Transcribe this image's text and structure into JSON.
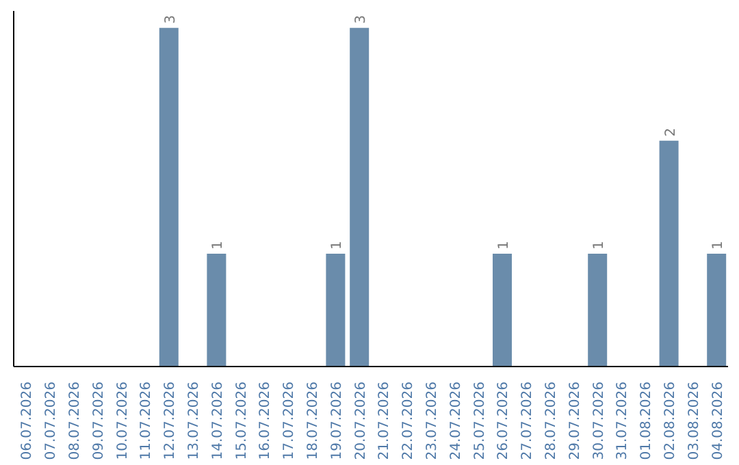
{
  "chart_data": {
    "type": "bar",
    "categories": [
      "06.07.2026",
      "07.07.2026",
      "08.07.2026",
      "09.07.2026",
      "10.07.2026",
      "11.07.2026",
      "12.07.2026",
      "13.07.2026",
      "14.07.2026",
      "15.07.2026",
      "16.07.2026",
      "17.07.2026",
      "18.07.2026",
      "19.07.2026",
      "20.07.2026",
      "21.07.2026",
      "22.07.2026",
      "23.07.2026",
      "24.07.2026",
      "25.07.2026",
      "26.07.2026",
      "27.07.2026",
      "28.07.2026",
      "29.07.2026",
      "30.07.2026",
      "31.07.2026",
      "01.08.2026",
      "02.08.2026",
      "03.08.2026",
      "04.08.2026"
    ],
    "values": [
      0,
      0,
      0,
      0,
      0,
      0,
      3,
      0,
      1,
      0,
      0,
      0,
      0,
      1,
      3,
      0,
      0,
      0,
      0,
      0,
      1,
      0,
      0,
      0,
      1,
      0,
      0,
      2,
      0,
      1
    ],
    "value_labels": [
      null,
      null,
      null,
      null,
      null,
      null,
      "3",
      null,
      "1",
      null,
      null,
      null,
      null,
      "1",
      "3",
      null,
      null,
      null,
      null,
      null,
      "1",
      null,
      null,
      null,
      "1",
      null,
      null,
      "2",
      null,
      "1"
    ],
    "color": "#6a8cab",
    "grid": false,
    "legend": false
  }
}
